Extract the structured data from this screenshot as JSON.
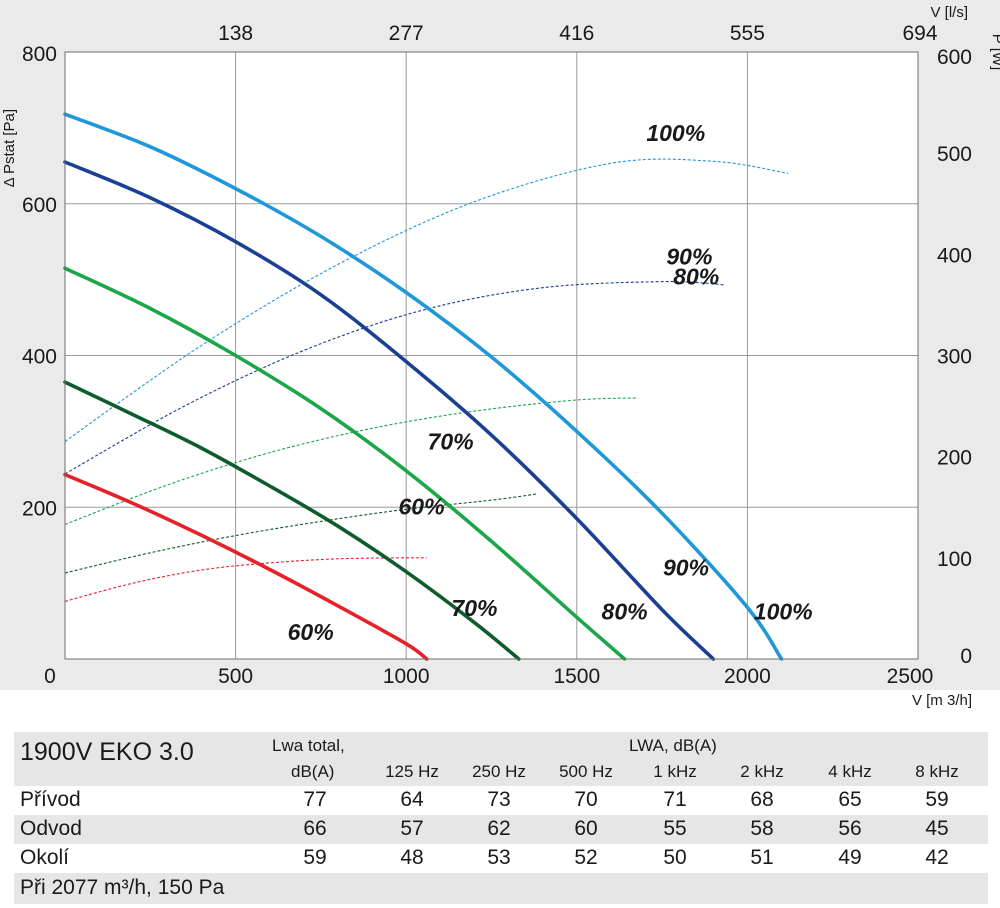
{
  "chart_data": {
    "type": "line",
    "xlabel": "V [m 3/h]",
    "x2label": "V [l/s]",
    "ylabel": "Δ Pstat [Pa]",
    "y2label": "P [W]",
    "xlim": [
      0,
      2500
    ],
    "ylim": [
      0,
      800
    ],
    "y2lim": [
      0,
      600
    ],
    "x_ticks": [
      "0",
      "500",
      "1000",
      "1500",
      "2000",
      "2500"
    ],
    "x_tick_values": [
      0,
      500,
      1000,
      1500,
      2000,
      2500
    ],
    "x2_ticks": [
      "138",
      "277",
      "416",
      "555",
      "694"
    ],
    "x2_tick_values": [
      500,
      1000,
      1500,
      2000,
      2500
    ],
    "y_ticks": [
      "200",
      "400",
      "600",
      "800"
    ],
    "y_tick_values": [
      200,
      400,
      600,
      800
    ],
    "y2_ticks": [
      "0",
      "100",
      "200",
      "300",
      "400",
      "500",
      "600"
    ],
    "y2_tick_values": [
      0,
      100,
      200,
      300,
      400,
      500,
      600
    ],
    "grid": true,
    "pressure_series": [
      {
        "label": "60%",
        "color": "#e8202a",
        "x": [
          0,
          200,
          400,
          600,
          800,
          1000,
          1060
        ],
        "y": [
          243,
          205,
          163,
          118,
          70,
          20,
          0
        ],
        "label_at": [
          720,
          25
        ]
      },
      {
        "label": "70%",
        "color": "#0e5c2c",
        "x": [
          0,
          200,
          400,
          600,
          800,
          1000,
          1200,
          1330
        ],
        "y": [
          365,
          322,
          278,
          228,
          175,
          115,
          48,
          0
        ],
        "label_at": [
          1200,
          57
        ]
      },
      {
        "label": "80%",
        "color": "#1ba64a",
        "x": [
          0,
          250,
          500,
          750,
          1000,
          1250,
          1500,
          1640
        ],
        "y": [
          515,
          462,
          400,
          330,
          248,
          155,
          55,
          0
        ],
        "label_at": [
          1640,
          52
        ]
      },
      {
        "label": "90%",
        "color": "#1a3f95",
        "x": [
          0,
          250,
          500,
          750,
          1000,
          1250,
          1500,
          1750,
          1900
        ],
        "y": [
          655,
          608,
          550,
          480,
          392,
          295,
          185,
          65,
          0
        ],
        "label_at": [
          1820,
          110
        ]
      },
      {
        "label": "100%",
        "color": "#1e98d8",
        "x": [
          0,
          250,
          500,
          750,
          1000,
          1250,
          1500,
          1750,
          2000,
          2100
        ],
        "y": [
          718,
          675,
          620,
          557,
          483,
          398,
          300,
          192,
          68,
          0
        ],
        "label_at": [
          2105,
          52
        ]
      }
    ],
    "power_series": [
      {
        "label": "60%",
        "color": "#e8202a",
        "x": [
          0,
          200,
          400,
          600,
          800,
          1000,
          1060
        ],
        "y": [
          57,
          75,
          88,
          95,
          99,
          100,
          100
        ],
        "label_at": [
          1045,
          143
        ]
      },
      {
        "label": "70%",
        "color": "#0e5c2c",
        "x": [
          0,
          250,
          500,
          750,
          1000,
          1250,
          1380
        ],
        "y": [
          85,
          105,
          122,
          136,
          148,
          157,
          163
        ],
        "label_at": [
          1130,
          207
        ]
      },
      {
        "label": "80%",
        "color": "#1ba64a",
        "x": [
          0,
          300,
          600,
          900,
          1200,
          1500,
          1680
        ],
        "y": [
          133,
          172,
          204,
          228,
          245,
          256,
          258
        ],
        "label_at": [
          1850,
          370
        ]
      },
      {
        "label": "90%",
        "color": "#1a3f95",
        "x": [
          0,
          350,
          700,
          1050,
          1400,
          1750,
          1930
        ],
        "y": [
          183,
          250,
          305,
          345,
          367,
          373,
          370
        ],
        "label_at": [
          1830,
          390
        ]
      },
      {
        "label": "100%",
        "color": "#1e98d8",
        "x": [
          0,
          400,
          800,
          1200,
          1600,
          1900,
          2120
        ],
        "y": [
          215,
          310,
          390,
          452,
          490,
          492,
          480
        ],
        "label_at": [
          1790,
          512
        ]
      }
    ]
  },
  "table": {
    "model": "1900V EKO 3.0",
    "lwa_total_line1": "Lwa total,",
    "lwa_total_line2": "dB(A)",
    "lwa_group": "LWA, dB(A)",
    "bands": [
      "125 Hz",
      "250 Hz",
      "500 Hz",
      "1 kHz",
      "2 kHz",
      "4 kHz",
      "8 kHz"
    ],
    "rows": [
      {
        "name": "Přívod",
        "total": "77",
        "values": [
          "64",
          "73",
          "70",
          "71",
          "68",
          "65",
          "59"
        ]
      },
      {
        "name": "Odvod",
        "total": "66",
        "values": [
          "57",
          "62",
          "60",
          "55",
          "58",
          "56",
          "45"
        ]
      },
      {
        "name": "Okolí",
        "total": "59",
        "values": [
          "48",
          "53",
          "52",
          "50",
          "51",
          "49",
          "42"
        ]
      }
    ],
    "footnote": "Při 2077 m³/h, 150 Pa"
  }
}
